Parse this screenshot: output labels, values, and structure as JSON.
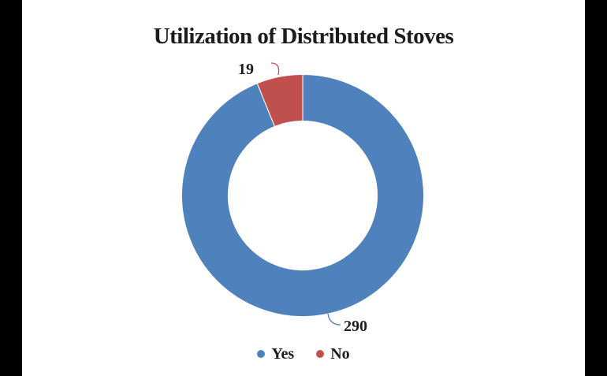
{
  "chart_data": {
    "type": "pie",
    "subtype": "donut",
    "title": "Utilization of Distributed Stoves",
    "categories": [
      "Yes",
      "No"
    ],
    "values": [
      290,
      19
    ],
    "colors": [
      "#4F81BD",
      "#C0504D"
    ],
    "data_labels": [
      "290",
      "19"
    ],
    "legend_position": "bottom",
    "start_angle_deg": 0,
    "direction": "clockwise",
    "donut_hole_ratio": 0.616,
    "background": "#ffffff",
    "letterbox_color": "#000000"
  }
}
